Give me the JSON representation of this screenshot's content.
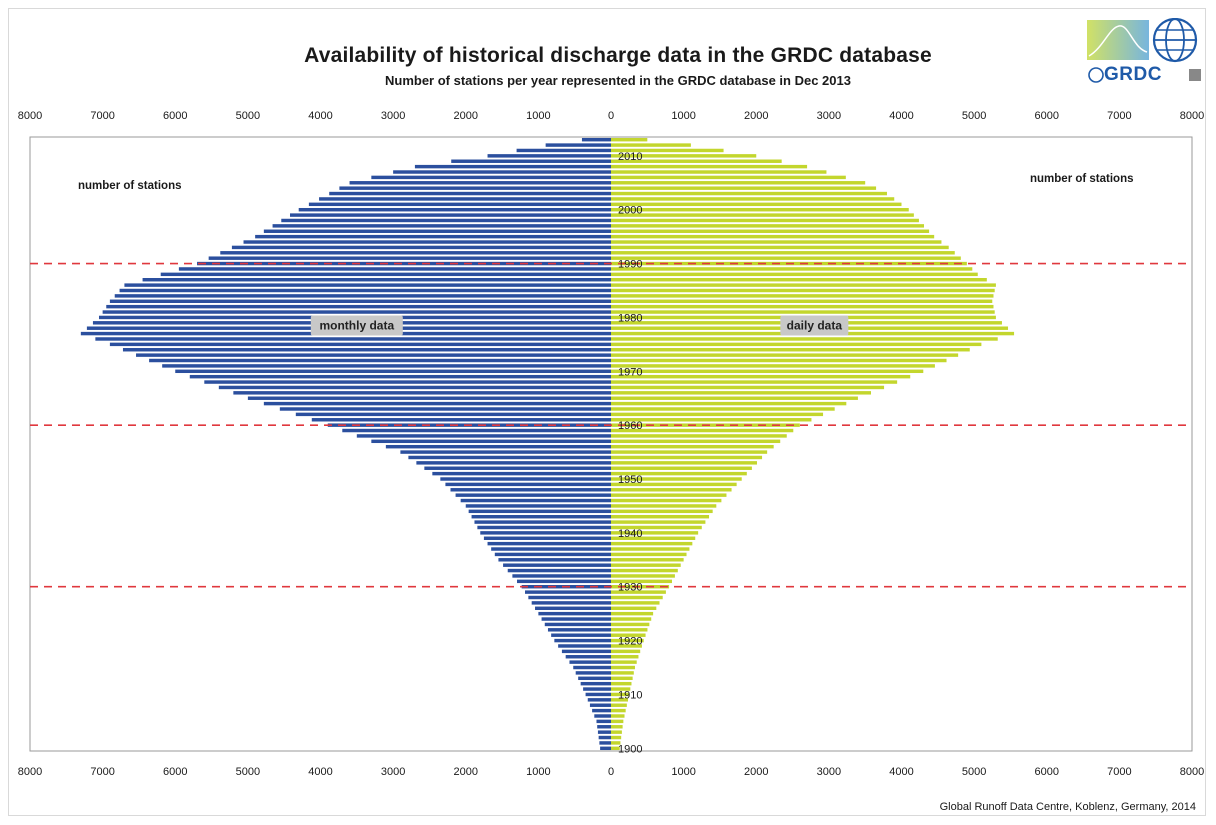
{
  "header": {
    "title": "Availability of historical discharge data in the GRDC database",
    "subtitle": "Number of stations per year represented in the GRDC database in Dec 2013"
  },
  "logo": {
    "text": "GRDC"
  },
  "footer": {
    "credit": "Global Runoff Data Centre, Koblenz, Germany, 2014"
  },
  "chart_data": {
    "type": "bar",
    "orientation": "horizontal-pyramid",
    "x_tick_labels": [
      "8000",
      "7000",
      "6000",
      "5000",
      "4000",
      "3000",
      "2000",
      "1000",
      "0",
      "1000",
      "2000",
      "3000",
      "4000",
      "5000",
      "6000",
      "7000",
      "8000"
    ],
    "xlim": [
      0,
      8000
    ],
    "y_tick_labels": [
      "2010",
      "2000",
      "1990",
      "1980",
      "1970",
      "1960",
      "1950",
      "1940",
      "1930",
      "1920",
      "1910",
      "1900"
    ],
    "ylim": [
      1900,
      2013
    ],
    "reference_lines_years": [
      1930,
      1960,
      1990
    ],
    "left_axis_label": "number of stations",
    "right_axis_label": "number of stations",
    "series": [
      {
        "name": "monthly data",
        "side": "left",
        "color": "#2b4f9e",
        "label_year": 1978.5,
        "label_value": 3500,
        "knots": [
          [
            1900,
            150
          ],
          [
            1905,
            200
          ],
          [
            1910,
            350
          ],
          [
            1915,
            520
          ],
          [
            1920,
            780
          ],
          [
            1925,
            1000
          ],
          [
            1930,
            1230
          ],
          [
            1935,
            1550
          ],
          [
            1940,
            1800
          ],
          [
            1945,
            2000
          ],
          [
            1950,
            2350
          ],
          [
            1955,
            2900
          ],
          [
            1960,
            3900
          ],
          [
            1965,
            5000
          ],
          [
            1970,
            6000
          ],
          [
            1975,
            6900
          ],
          [
            1977,
            7300
          ],
          [
            1980,
            7050
          ],
          [
            1983,
            6900
          ],
          [
            1986,
            6700
          ],
          [
            1988,
            6200
          ],
          [
            1990,
            5700
          ],
          [
            1995,
            4900
          ],
          [
            2000,
            4300
          ],
          [
            2005,
            3600
          ],
          [
            2008,
            2700
          ],
          [
            2010,
            1700
          ],
          [
            2012,
            900
          ],
          [
            2013,
            400
          ]
        ]
      },
      {
        "name": "daily data",
        "side": "right",
        "color": "#c3d62d",
        "label_year": 1978.5,
        "label_value": 2800,
        "knots": [
          [
            1900,
            120
          ],
          [
            1905,
            170
          ],
          [
            1910,
            250
          ],
          [
            1915,
            330
          ],
          [
            1920,
            450
          ],
          [
            1925,
            580
          ],
          [
            1930,
            800
          ],
          [
            1935,
            1000
          ],
          [
            1940,
            1200
          ],
          [
            1945,
            1450
          ],
          [
            1950,
            1800
          ],
          [
            1955,
            2150
          ],
          [
            1960,
            2600
          ],
          [
            1965,
            3400
          ],
          [
            1970,
            4300
          ],
          [
            1975,
            5100
          ],
          [
            1977,
            5550
          ],
          [
            1980,
            5300
          ],
          [
            1983,
            5250
          ],
          [
            1986,
            5300
          ],
          [
            1988,
            5050
          ],
          [
            1990,
            4900
          ],
          [
            1993,
            4650
          ],
          [
            1995,
            4450
          ],
          [
            2000,
            4100
          ],
          [
            2003,
            3800
          ],
          [
            2005,
            3500
          ],
          [
            2008,
            2700
          ],
          [
            2010,
            2000
          ],
          [
            2012,
            1100
          ],
          [
            2013,
            500
          ]
        ]
      }
    ]
  }
}
